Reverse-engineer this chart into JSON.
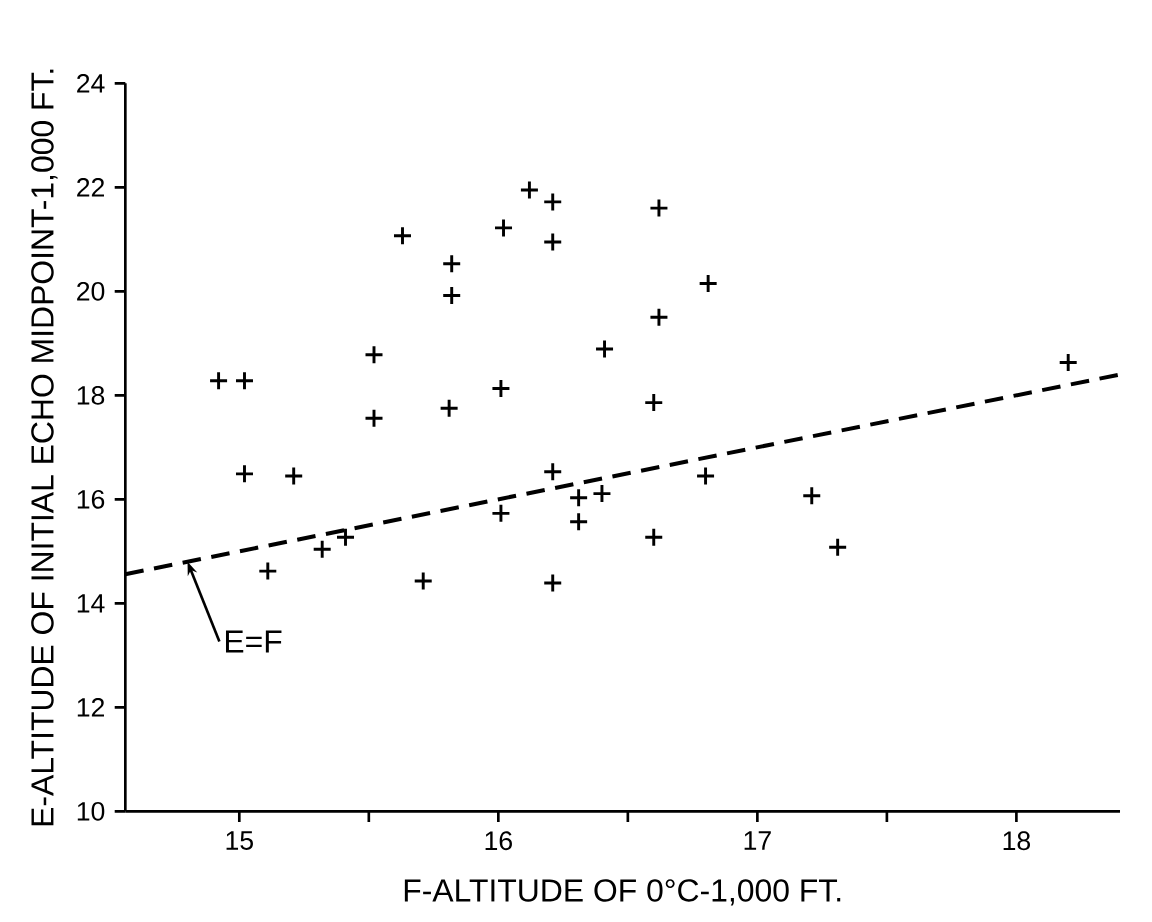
{
  "chart_data": {
    "type": "scatter",
    "xlabel": "F-ALTITUDE OF 0°C-1,000 FT.",
    "ylabel": "E-ALTITUDE OF INITIAL ECHO MIDPOINT-1,000 FT.",
    "xlim": [
      14.56,
      18.4
    ],
    "ylim": [
      10,
      24
    ],
    "xticks": [
      15,
      {
        "value": 15.5,
        "label": null
      },
      16,
      {
        "value": 16.5,
        "label": null
      },
      17,
      {
        "value": 17.5,
        "label": null
      },
      18
    ],
    "yticks": [
      10,
      12,
      14,
      16,
      18,
      20,
      22,
      24
    ],
    "marker": "cross",
    "grid": false,
    "series": [
      {
        "color": "#000000",
        "x": [
          14.92,
          15.02,
          15.02,
          15.11,
          15.21,
          15.32,
          15.41,
          15.52,
          15.52,
          15.71,
          15.63,
          15.82,
          15.82,
          15.81,
          16.02,
          16.01,
          16.01,
          16.12,
          16.21,
          16.21,
          16.21,
          16.31,
          16.31,
          16.4,
          16.41,
          16.21,
          16.62,
          16.62,
          16.6,
          16.6,
          16.81,
          16.8,
          17.21,
          17.31,
          18.2
        ],
        "values": [
          18.28,
          18.28,
          16.49,
          14.62,
          16.45,
          15.04,
          15.27,
          18.78,
          17.56,
          14.43,
          21.07,
          20.53,
          19.92,
          17.75,
          21.22,
          18.13,
          15.73,
          21.95,
          21.72,
          20.95,
          16.53,
          16.03,
          15.57,
          16.11,
          18.89,
          14.39,
          21.6,
          19.5,
          17.86,
          15.27,
          20.15,
          16.45,
          16.07,
          15.08,
          18.63
        ]
      },
      {
        "type": "line",
        "color": "#000000",
        "line_style": "dashed",
        "marker": "none",
        "x": [
          14.56,
          18.4
        ],
        "values": [
          14.56,
          18.4
        ]
      }
    ],
    "annotations": [
      {
        "text": "E=F",
        "x": 14.8,
        "y": 14.8
      }
    ]
  }
}
